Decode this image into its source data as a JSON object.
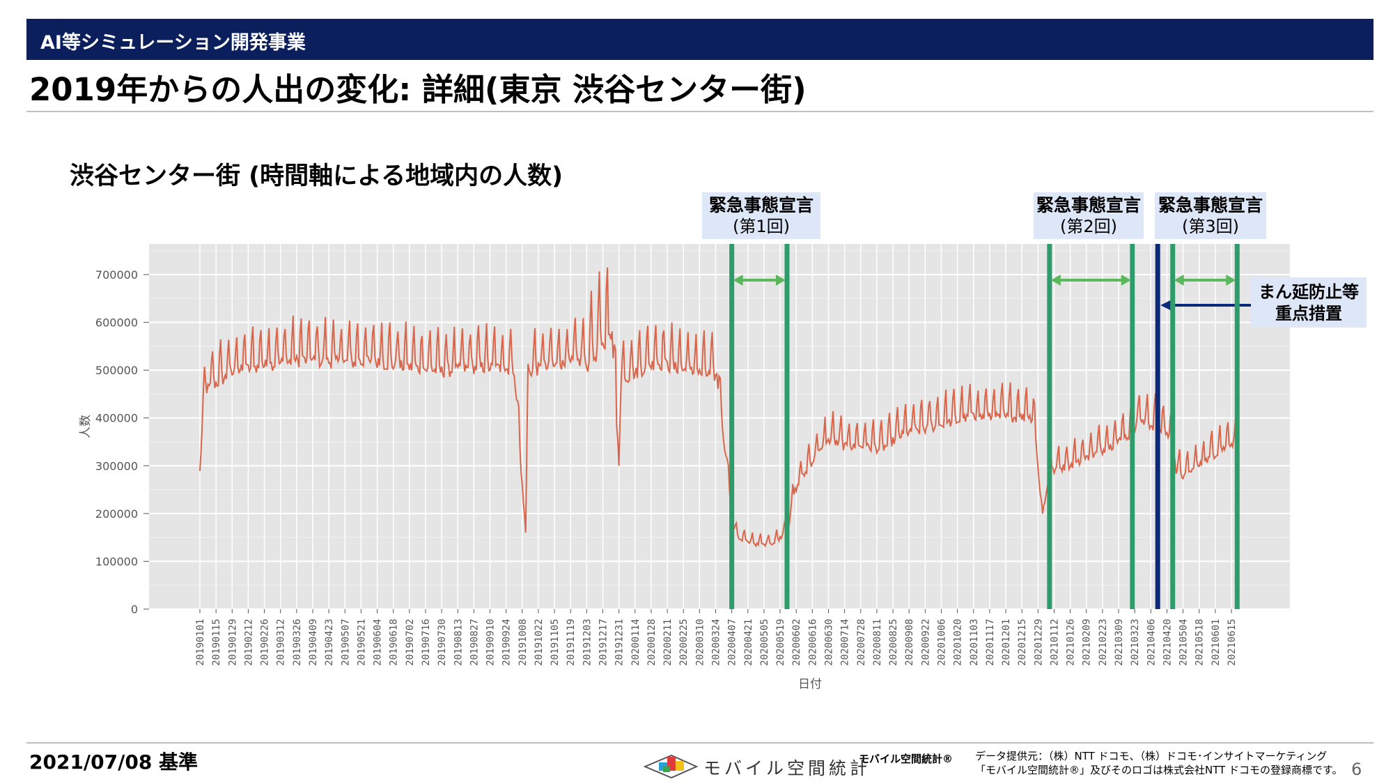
{
  "header": {
    "section": "AI等シミュレーション開発事業"
  },
  "page_title": "2019年からの人出の変化: 詳細(東京 渋谷センター街)",
  "chart_title": "渋谷センター街 (時間軸による地域内の人数)",
  "annotations": {
    "decl1": {
      "line1": "緊急事態宣言",
      "line2": "(第1回)"
    },
    "decl2": {
      "line1": "緊急事態宣言",
      "line2": "(第2回)"
    },
    "decl3": {
      "line1": "緊急事態宣言",
      "line2": "(第3回)"
    },
    "manen": {
      "line1": "まん延防止等",
      "line2": "重点措置"
    }
  },
  "chart_data": {
    "type": "line",
    "xlabel": "日付",
    "ylabel": "人数",
    "ylim": [
      0,
      750000
    ],
    "yticks": [
      0,
      100000,
      200000,
      300000,
      400000,
      500000,
      600000,
      700000
    ],
    "xticks": [
      "20190101",
      "20190115",
      "20190129",
      "20190212",
      "20190226",
      "20190312",
      "20190326",
      "20190409",
      "20190423",
      "20190507",
      "20190521",
      "20190604",
      "20190618",
      "20190702",
      "20190716",
      "20190730",
      "20190813",
      "20190827",
      "20190910",
      "20190924",
      "20191008",
      "20191022",
      "20191105",
      "20191119",
      "20191203",
      "20191217",
      "20191231",
      "20200114",
      "20200128",
      "20200211",
      "20200225",
      "20200310",
      "20200324",
      "20200407",
      "20200421",
      "20200505",
      "20200519",
      "20200602",
      "20200616",
      "20200630",
      "20200714",
      "20200728",
      "20200811",
      "20200825",
      "20200908",
      "20200922",
      "20201006",
      "20201020",
      "20201103",
      "20201117",
      "20201201",
      "20201215",
      "20201229",
      "20210112",
      "20210126",
      "20210209",
      "20210223",
      "20210309",
      "20210323",
      "20210406",
      "20210420",
      "20210504",
      "20210518",
      "20210601",
      "20210615"
    ],
    "grid": true,
    "series": [
      {
        "color": "#d9664a",
        "anchors": [
          [
            "2019-01-01",
            300000
          ],
          [
            "2019-01-03",
            400000
          ],
          [
            "2019-01-06",
            480000
          ],
          [
            "2019-02-01",
            520000
          ],
          [
            "2019-03-01",
            535000
          ],
          [
            "2019-04-01",
            545000
          ],
          [
            "2019-05-01",
            540000
          ],
          [
            "2019-06-01",
            540000
          ],
          [
            "2019-07-01",
            530000
          ],
          [
            "2019-08-01",
            520000
          ],
          [
            "2019-09-01",
            530000
          ],
          [
            "2019-10-01",
            525000
          ],
          [
            "2019-10-11",
            160000
          ],
          [
            "2019-10-13",
            520000
          ],
          [
            "2019-11-01",
            530000
          ],
          [
            "2019-12-01",
            545000
          ],
          [
            "2019-12-15",
            590000
          ],
          [
            "2019-12-25",
            620000
          ],
          [
            "2019-12-31",
            300000
          ],
          [
            "2020-01-02",
            500000
          ],
          [
            "2020-02-01",
            540000
          ],
          [
            "2020-03-01",
            520000
          ],
          [
            "2020-03-25",
            510000
          ],
          [
            "2020-04-02",
            330000
          ],
          [
            "2020-04-08",
            175000
          ],
          [
            "2020-04-15",
            150000
          ],
          [
            "2020-05-01",
            140000
          ],
          [
            "2020-05-15",
            145000
          ],
          [
            "2020-05-26",
            175000
          ],
          [
            "2020-06-01",
            260000
          ],
          [
            "2020-06-15",
            320000
          ],
          [
            "2020-07-01",
            370000
          ],
          [
            "2020-07-15",
            355000
          ],
          [
            "2020-08-01",
            355000
          ],
          [
            "2020-08-15",
            350000
          ],
          [
            "2020-09-01",
            380000
          ],
          [
            "2020-10-01",
            400000
          ],
          [
            "2020-11-01",
            420000
          ],
          [
            "2020-12-01",
            420000
          ],
          [
            "2020-12-25",
            420000
          ],
          [
            "2021-01-02",
            200000
          ],
          [
            "2021-01-08",
            300000
          ],
          [
            "2021-02-01",
            320000
          ],
          [
            "2021-03-01",
            355000
          ],
          [
            "2021-03-21",
            385000
          ],
          [
            "2021-03-25",
            410000
          ],
          [
            "2021-04-10",
            400000
          ],
          [
            "2021-04-25",
            375000
          ],
          [
            "2021-04-28",
            300000
          ],
          [
            "2021-05-05",
            290000
          ],
          [
            "2021-06-01",
            340000
          ],
          [
            "2021-06-20",
            370000
          ]
        ]
      }
    ],
    "events": [
      {
        "kind": "state_of_emergency",
        "label": "緊急事態宣言 (第1回)",
        "start": "2020-04-07",
        "end": "2020-05-25"
      },
      {
        "kind": "state_of_emergency",
        "label": "緊急事態宣言 (第2回)",
        "start": "2021-01-08",
        "end": "2021-03-21"
      },
      {
        "kind": "priority_measures",
        "label": "まん延防止等重点措置",
        "date": "2021-04-12"
      },
      {
        "kind": "state_of_emergency",
        "label": "緊急事態宣言 (第3回)",
        "start": "2021-04-25",
        "end": "2021-06-20"
      }
    ]
  },
  "footer": {
    "date": "2021/07/08 基準",
    "logo_text": "モバイル空間統計",
    "brand": "モバイル空間統計®",
    "credit_line1": "データ提供元：（株）NTT ドコモ、（株）ドコモ･インサイトマーケティング",
    "credit_line2": "「モバイル空間統計®」及びそのロゴは株式会社NTT ドコモの登録商標です。",
    "page_number": "6"
  },
  "colors": {
    "header": "#0b1f5c",
    "line": "#d9664a",
    "event_line": "#2e9b6a",
    "arrow": "#5cb85c",
    "manen_line": "#0b2a7a",
    "panel": "#e5e5e5"
  }
}
